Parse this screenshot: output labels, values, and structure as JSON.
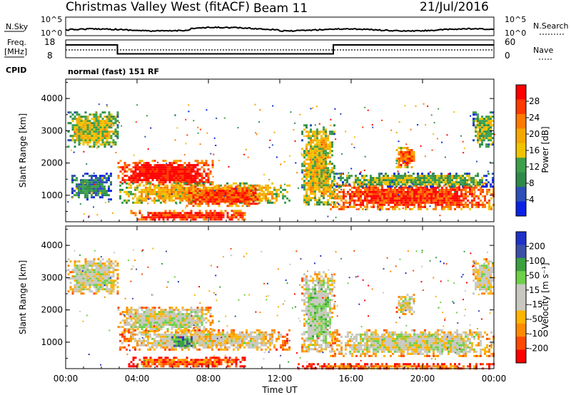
{
  "header": {
    "station": "Christmas Valley West (fitACF)",
    "beam": "Beam 11",
    "date": "21/Jul/2016"
  },
  "sky_panel": {
    "left_label": "N.Sky",
    "right_label": "N.Search",
    "left_ticks": [
      "10^5",
      "10^0"
    ],
    "right_ticks": [
      "10^5",
      "10^0"
    ]
  },
  "freq_panel": {
    "label_line1": "Freq.",
    "label_line2": "[MHz]",
    "left_ticks": [
      "18",
      "8"
    ],
    "right_ticks": [
      "60",
      "0"
    ],
    "right_label": "Nave",
    "cpid_label": "CPID",
    "mode_text": "normal (fast) 151 RF",
    "freq_steps": [
      {
        "t": 0.0,
        "mhz": 15.2
      },
      {
        "t": 2.9,
        "mhz": 15.2
      },
      {
        "t": 2.9,
        "mhz": 10.2
      },
      {
        "t": 15.0,
        "mhz": 10.2
      },
      {
        "t": 15.0,
        "mhz": 15.2
      },
      {
        "t": 24.0,
        "mhz": 15.2
      }
    ]
  },
  "colors": {
    "power": [
      "#0b22e6",
      "#2d4fb8",
      "#2e8a4a",
      "#3ca04a",
      "#f0c400",
      "#f5a800",
      "#ff7a00",
      "#ff3a00",
      "#ff0000"
    ],
    "velocity": [
      "#ff0000",
      "#ff4a00",
      "#ff8a00",
      "#ffb400",
      "#c8c8c0",
      "#c8c8c0",
      "#6ed048",
      "#3aa040",
      "#3c4fa8",
      "#1e32c8"
    ],
    "ground": "#c4c4bc"
  },
  "chart_data": [
    {
      "type": "heatmap",
      "title": "",
      "ylabel": "Slant Range [km]",
      "xlabel": "",
      "ylim": [
        180,
        4600
      ],
      "yticks": [
        "1000",
        "2000",
        "3000",
        "4000"
      ],
      "ytick_values": [
        1000,
        2000,
        3000,
        4000
      ],
      "xlim_hours": [
        0,
        24
      ],
      "colorbar": {
        "label": "Power [dB]",
        "ticks": [
          "4",
          "8",
          "12",
          "16",
          "20",
          "24",
          "28"
        ],
        "range": [
          0,
          32
        ]
      },
      "regions": [
        {
          "t0": 0.1,
          "t1": 2.9,
          "r0": 2500,
          "r1": 3600,
          "level": 0.5
        },
        {
          "t0": 0.2,
          "t1": 2.5,
          "r0": 900,
          "r1": 1700,
          "level": 0.3
        },
        {
          "t0": 2.9,
          "t1": 8.3,
          "r0": 1350,
          "r1": 2100,
          "level": 0.95
        },
        {
          "t0": 3.0,
          "t1": 12.5,
          "r0": 800,
          "r1": 1400,
          "level": 0.6
        },
        {
          "t0": 6.5,
          "t1": 11.0,
          "r0": 700,
          "r1": 1300,
          "level": 0.85
        },
        {
          "t0": 3.5,
          "t1": 10.0,
          "r0": 250,
          "r1": 550,
          "level": 0.9
        },
        {
          "t0": 13.2,
          "t1": 15.0,
          "r0": 700,
          "r1": 3200,
          "level": 0.55
        },
        {
          "t0": 14.8,
          "t1": 24.0,
          "r0": 600,
          "r1": 1400,
          "level": 0.85
        },
        {
          "t0": 15.0,
          "t1": 24.0,
          "r0": 1300,
          "r1": 1700,
          "level": 0.4
        },
        {
          "t0": 18.5,
          "t1": 19.5,
          "r0": 1900,
          "r1": 2500,
          "level": 0.8
        },
        {
          "t0": 22.8,
          "t1": 24.0,
          "r0": 2500,
          "r1": 3600,
          "level": 0.45
        }
      ]
    },
    {
      "type": "heatmap",
      "title": "",
      "ylabel": "Slant Range [km]",
      "xlabel": "Time UT",
      "ylim": [
        180,
        4600
      ],
      "yticks": [
        "1000",
        "2000",
        "3000",
        "4000"
      ],
      "ytick_values": [
        1000,
        2000,
        3000,
        4000
      ],
      "xlim_hours": [
        0,
        24
      ],
      "xticks": [
        "00:00",
        "04:00",
        "08:00",
        "12:00",
        "16:00",
        "20:00",
        "00:00"
      ],
      "xtick_values": [
        0,
        4,
        8,
        12,
        16,
        20,
        24
      ],
      "colorbar": {
        "label": "Velocity [m s⁻¹]",
        "ticks": [
          "200",
          "100",
          "50",
          "15",
          "-15",
          "-50",
          "-100",
          "-200"
        ],
        "range": [
          -250,
          250
        ]
      },
      "regions": [
        {
          "t0": 0.1,
          "t1": 2.9,
          "r0": 2500,
          "r1": 3600,
          "level": 0.5
        },
        {
          "t0": 2.9,
          "t1": 8.3,
          "r0": 1350,
          "r1": 2100,
          "level": 0.5
        },
        {
          "t0": 3.0,
          "t1": 12.5,
          "r0": 800,
          "r1": 1400,
          "level": 0.45
        },
        {
          "t0": 5.8,
          "t1": 7.2,
          "r0": 850,
          "r1": 1250,
          "level": 0.75
        },
        {
          "t0": 3.5,
          "t1": 10.0,
          "r0": 250,
          "r1": 550,
          "level": 0.2
        },
        {
          "t0": 13.2,
          "t1": 15.0,
          "r0": 700,
          "r1": 3200,
          "level": 0.55
        },
        {
          "t0": 14.8,
          "t1": 24.0,
          "r0": 600,
          "r1": 1400,
          "level": 0.5
        },
        {
          "t0": 13.0,
          "t1": 24.0,
          "r0": 200,
          "r1": 350,
          "level": 0.25
        },
        {
          "t0": 18.5,
          "t1": 19.5,
          "r0": 1900,
          "r1": 2500,
          "level": 0.5
        },
        {
          "t0": 22.8,
          "t1": 24.0,
          "r0": 2500,
          "r1": 3600,
          "level": 0.5
        }
      ]
    }
  ]
}
